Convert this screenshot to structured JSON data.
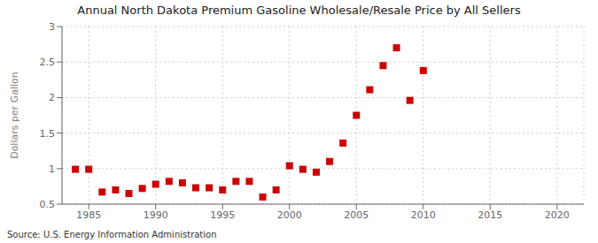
{
  "chart_data": {
    "type": "scatter",
    "title": "Annual North Dakota Premium Gasoline Wholesale/Resale Price by All Sellers",
    "ylabel": "Dollars per Gallon",
    "annotation": "Source: U.S. Energy Information Administration",
    "color": "#cc0000",
    "marker": "square",
    "grid": true,
    "x": [
      1984,
      1985,
      1986,
      1987,
      1988,
      1989,
      1990,
      1991,
      1992,
      1993,
      1994,
      1995,
      1996,
      1997,
      1998,
      1999,
      2000,
      2001,
      2002,
      2003,
      2004,
      2005,
      2006,
      2007,
      2008,
      2009,
      2010
    ],
    "values": [
      0.99,
      0.99,
      0.67,
      0.7,
      0.65,
      0.72,
      0.78,
      0.82,
      0.8,
      0.73,
      0.73,
      0.7,
      0.82,
      0.82,
      0.6,
      0.7,
      1.04,
      0.99,
      0.95,
      1.1,
      1.36,
      1.75,
      2.11,
      2.45,
      2.7,
      1.96,
      2.38
    ],
    "xlim": [
      1983,
      2022
    ],
    "ylim": [
      0.5,
      3.0
    ],
    "xticks": [
      1985,
      1990,
      1995,
      2000,
      2005,
      2010,
      2015,
      2020
    ],
    "yticks": [
      0.5,
      1.0,
      1.5,
      2.0,
      2.5,
      3.0
    ]
  }
}
